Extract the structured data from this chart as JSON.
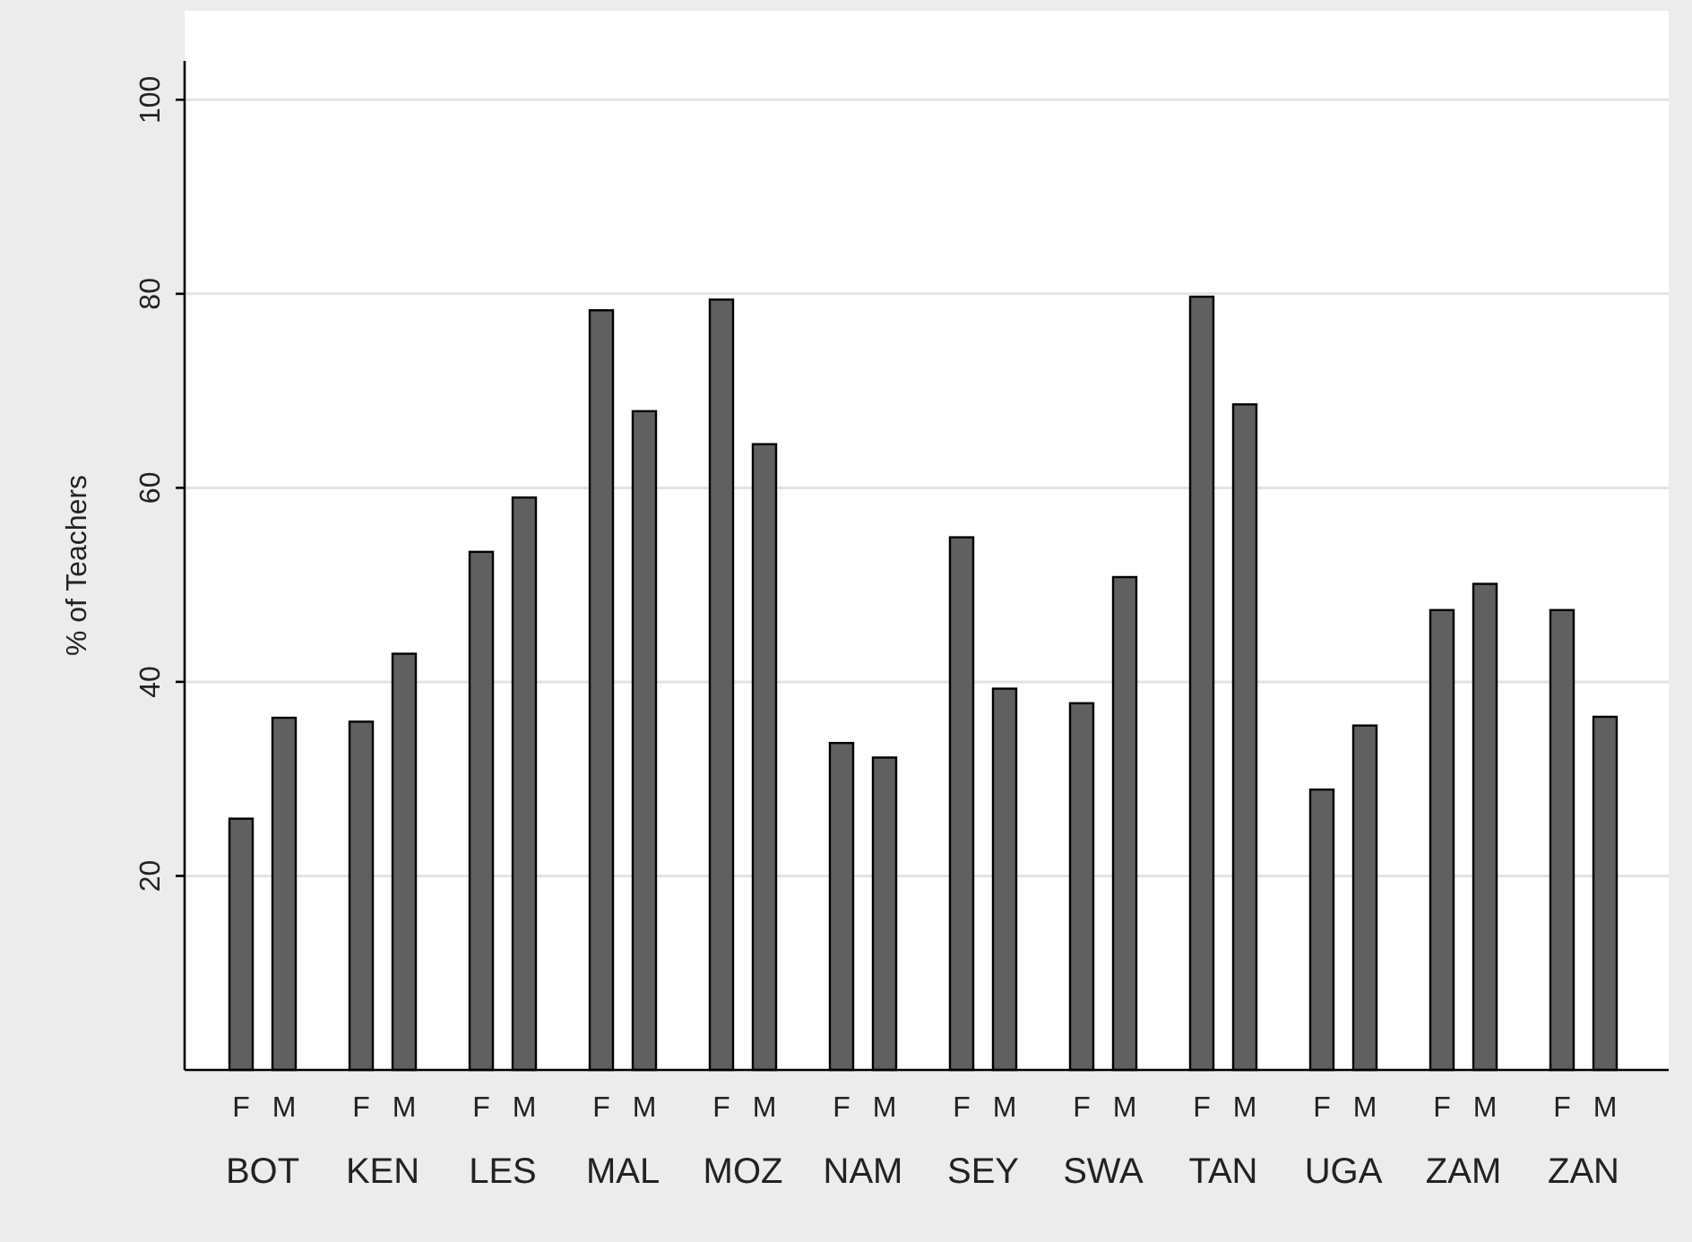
{
  "chart_data": {
    "type": "bar",
    "ylabel": "% of Teachers",
    "categories": [
      "BOT",
      "KEN",
      "LES",
      "MAL",
      "MOZ",
      "NAM",
      "SEY",
      "SWA",
      "TAN",
      "UGA",
      "ZAM",
      "ZAN"
    ],
    "series": [
      {
        "name": "F",
        "color": "#606060",
        "values": [
          25.9,
          35.9,
          53.4,
          78.3,
          79.4,
          33.7,
          54.9,
          37.8,
          79.7,
          28.9,
          47.4,
          47.4
        ]
      },
      {
        "name": "M",
        "color": "#606060",
        "values": [
          36.3,
          42.9,
          59.0,
          67.9,
          64.5,
          32.2,
          39.3,
          50.8,
          68.6,
          35.5,
          50.1,
          36.4
        ]
      }
    ],
    "ylim": [
      0,
      104
    ],
    "yticks": [
      20,
      40,
      60,
      80,
      100
    ],
    "grid": "y",
    "legend": false
  }
}
